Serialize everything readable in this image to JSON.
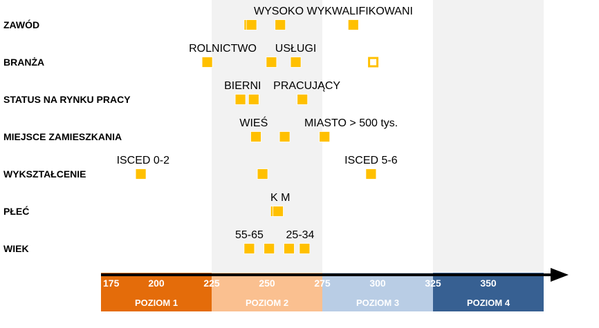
{
  "chart_data": {
    "type": "scatter",
    "title": "",
    "xlabel": "",
    "ylabel": "",
    "xlim": [
      175,
      375
    ],
    "categories": [
      "WIEK",
      "PŁEĆ",
      "WYKSZTAŁCENIE",
      "MIEJSCE ZAMIESZKANIA",
      "STATUS NA RYNKU PRACY",
      "BRANŻA",
      "ZAWÓD"
    ],
    "ticks": [
      {
        "value": 175,
        "label": "175"
      },
      {
        "value": 200,
        "label": "200"
      },
      {
        "value": 225,
        "label": "225"
      },
      {
        "value": 250,
        "label": "250"
      },
      {
        "value": 275,
        "label": "275"
      },
      {
        "value": 300,
        "label": "300"
      },
      {
        "value": 325,
        "label": "325"
      },
      {
        "value": 350,
        "label": "350"
      }
    ],
    "levels": [
      {
        "label": "POZIOM 1",
        "from": 175,
        "to": 225,
        "color": "#E46C0A",
        "band": false
      },
      {
        "label": "POZIOM 2",
        "from": 225,
        "to": 275,
        "color": "#FAC090",
        "band": true
      },
      {
        "label": "POZIOM 3",
        "from": 275,
        "to": 325,
        "color": "#B9CDE5",
        "band": false
      },
      {
        "label": "POZIOM 4",
        "from": 325,
        "to": 375,
        "color": "#376092",
        "band": true
      }
    ],
    "points": [
      {
        "category": "ZAWÓD",
        "value": 242
      },
      {
        "category": "ZAWÓD",
        "value": 243
      },
      {
        "category": "ZAWÓD",
        "value": 256
      },
      {
        "category": "ZAWÓD",
        "value": 289
      },
      {
        "category": "BRANŻA",
        "value": 223
      },
      {
        "category": "BRANŻA",
        "value": 252
      },
      {
        "category": "BRANŻA",
        "value": 263
      },
      {
        "category": "BRANŻA",
        "value": 298,
        "hollow": true
      },
      {
        "category": "STATUS NA RYNKU PRACY",
        "value": 238
      },
      {
        "category": "STATUS NA RYNKU PRACY",
        "value": 244
      },
      {
        "category": "STATUS NA RYNKU PRACY",
        "value": 266
      },
      {
        "category": "MIEJSCE ZAMIESZKANIA",
        "value": 245
      },
      {
        "category": "MIEJSCE ZAMIESZKANIA",
        "value": 258
      },
      {
        "category": "MIEJSCE ZAMIESZKANIA",
        "value": 276
      },
      {
        "category": "WYKSZTAŁCENIE",
        "value": 193
      },
      {
        "category": "WYKSZTAŁCENIE",
        "value": 248
      },
      {
        "category": "WYKSZTAŁCENIE",
        "value": 297
      },
      {
        "category": "PŁEĆ",
        "value": 254
      },
      {
        "category": "PŁEĆ",
        "value": 255
      },
      {
        "category": "WIEK",
        "value": 242
      },
      {
        "category": "WIEK",
        "value": 251
      },
      {
        "category": "WIEK",
        "value": 260
      },
      {
        "category": "WIEK",
        "value": 267
      }
    ],
    "annotations": [
      {
        "category": "ZAWÓD",
        "value": 280,
        "text": "WYSOKO WYKWALIFIKOWANI"
      },
      {
        "category": "BRANŻA",
        "value": 230,
        "text": "ROLNICTWO"
      },
      {
        "category": "BRANŻA",
        "value": 263,
        "text": "USŁUGI"
      },
      {
        "category": "STATUS NA RYNKU PRACY",
        "value": 239,
        "text": "BIERNI"
      },
      {
        "category": "STATUS NA RYNKU PRACY",
        "value": 268,
        "text": "PRACUJĄCY"
      },
      {
        "category": "MIEJSCE ZAMIESZKANIA",
        "value": 244,
        "text": "WIEŚ"
      },
      {
        "category": "MIEJSCE ZAMIESZKANIA",
        "value": 288,
        "text": "MIASTO > 500 tys."
      },
      {
        "category": "WYKSZTAŁCENIE",
        "value": 194,
        "text": "ISCED 0-2"
      },
      {
        "category": "WYKSZTAŁCENIE",
        "value": 297,
        "text": "ISCED 5-6"
      },
      {
        "category": "PŁEĆ",
        "value": 256,
        "text": "K M"
      },
      {
        "category": "WIEK",
        "value": 242,
        "text": "55-65"
      },
      {
        "category": "WIEK",
        "value": 265,
        "text": "25-34"
      }
    ],
    "grid": false,
    "legend": "none",
    "marker_color": "#FFC000"
  }
}
